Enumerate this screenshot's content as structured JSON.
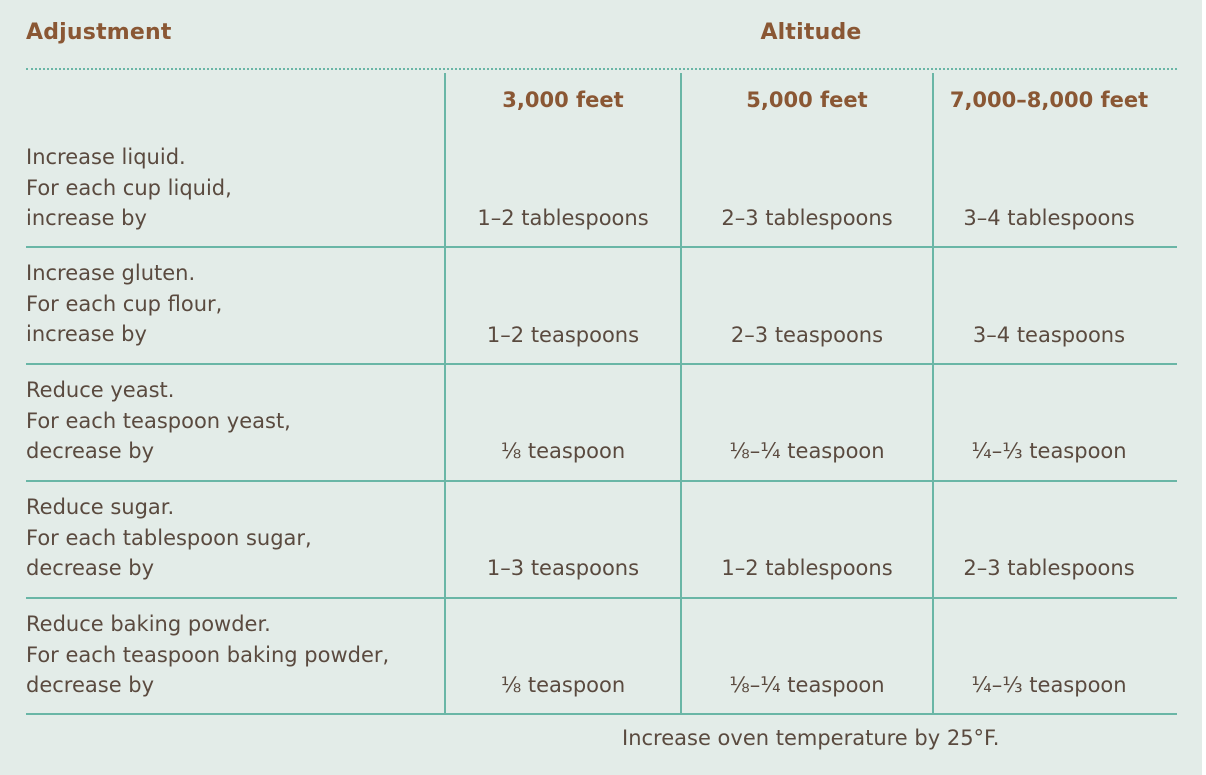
{
  "header": {
    "adjustment": "Adjustment",
    "altitude": "Altitude"
  },
  "columns": [
    "3,000 feet",
    "5,000 feet",
    "7,000–8,000 feet"
  ],
  "rows": [
    {
      "lines": [
        "Increase liquid.",
        "For each cup liquid,",
        "increase by"
      ],
      "values": [
        "1–2 tablespoons",
        "2–3 tablespoons",
        "3–4 tablespoons"
      ]
    },
    {
      "lines": [
        "Increase gluten.",
        "For each cup flour,",
        "increase by"
      ],
      "values": [
        "1–2 teaspoons",
        "2–3 teaspoons",
        "3–4 teaspoons"
      ]
    },
    {
      "lines": [
        "Reduce yeast.",
        "For each teaspoon yeast,",
        "decrease by"
      ],
      "values": [
        "⅛ teaspoon",
        "⅛–¼ teaspoon",
        "¼–⅓ teaspoon"
      ]
    },
    {
      "lines": [
        "Reduce sugar.",
        "For each tablespoon sugar,",
        "decrease by"
      ],
      "values": [
        "1–3 teaspoons",
        "1–2 tablespoons",
        "2–3 tablespoons"
      ]
    },
    {
      "lines": [
        "Reduce baking powder.",
        "For each teaspoon baking powder,",
        "decrease by"
      ],
      "values": [
        "⅛ teaspoon",
        "⅛–¼ teaspoon",
        "¼–⅓ teaspoon"
      ]
    }
  ],
  "footnote": "Increase oven temperature by 25°F.",
  "colors": {
    "background": "#e3ece8",
    "heading": "#8a5734",
    "text": "#5a4a3f",
    "rule": "#6ab6a6"
  }
}
